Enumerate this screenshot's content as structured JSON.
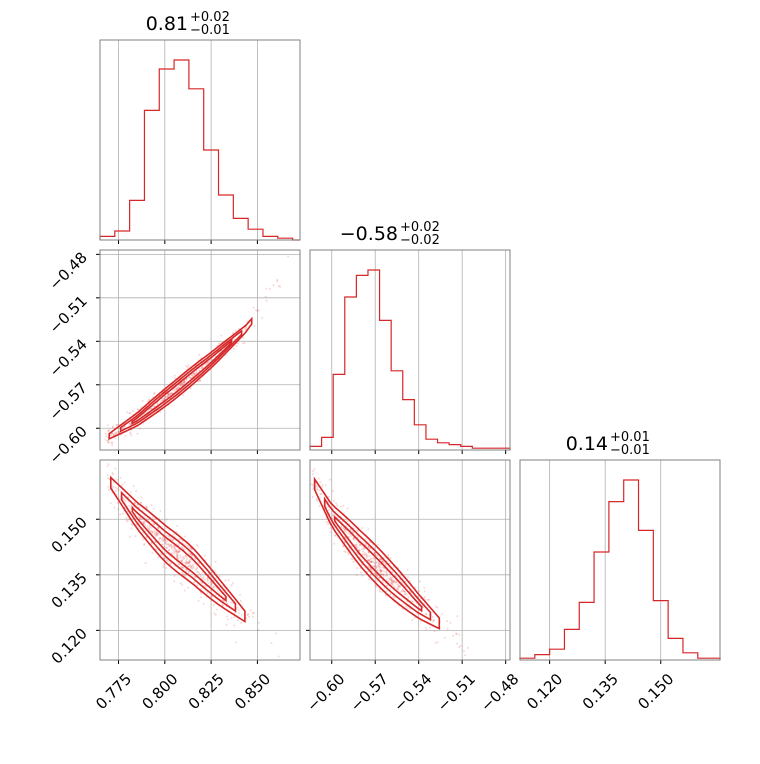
{
  "chart_data": {
    "type": "corner",
    "color": "#d62728",
    "grid": true,
    "parameters": [
      {
        "median": "0.81",
        "plus": "+0.02",
        "minus": "−0.01",
        "range": [
          0.765,
          0.873
        ],
        "ticks": [
          0.775,
          0.8,
          0.825,
          0.85
        ],
        "tick_labels": [
          "0.775",
          "0.800",
          "0.825",
          "0.850"
        ],
        "hist": {
          "bins": [
            0.765,
            0.773,
            0.781,
            0.789,
            0.797,
            0.805,
            0.813,
            0.821,
            0.829,
            0.837,
            0.845,
            0.853,
            0.861,
            0.869,
            0.873
          ],
          "counts": [
            2,
            5,
            22,
            72,
            95,
            100,
            84,
            50,
            25,
            12,
            6,
            2,
            1,
            0
          ]
        }
      },
      {
        "median": "−0.58",
        "plus": "+0.02",
        "minus": "−0.02",
        "range": [
          -0.615,
          -0.477
        ],
        "ticks": [
          -0.6,
          -0.57,
          -0.54,
          -0.51,
          -0.48
        ],
        "tick_labels": [
          "−0.60",
          "−0.57",
          "−0.54",
          "−0.51",
          "−0.48"
        ],
        "hist": {
          "bins": [
            -0.615,
            -0.607,
            -0.599,
            -0.591,
            -0.583,
            -0.575,
            -0.567,
            -0.559,
            -0.551,
            -0.543,
            -0.535,
            -0.527,
            -0.519,
            -0.511,
            -0.503,
            -0.495,
            -0.477
          ],
          "counts": [
            2,
            7,
            42,
            85,
            97,
            100,
            72,
            44,
            28,
            14,
            6,
            4,
            3,
            2,
            1,
            1
          ]
        }
      },
      {
        "median": "0.14",
        "plus": "+0.01",
        "minus": "−0.01",
        "range": [
          0.112,
          0.166
        ],
        "ticks": [
          0.12,
          0.135,
          0.15
        ],
        "tick_labels": [
          "0.120",
          "0.135",
          "0.150"
        ],
        "hist": {
          "bins": [
            0.112,
            0.116,
            0.12,
            0.124,
            0.128,
            0.132,
            0.136,
            0.14,
            0.144,
            0.148,
            0.152,
            0.156,
            0.16,
            0.166
          ],
          "counts": [
            1,
            3,
            6,
            17,
            32,
            60,
            88,
            100,
            72,
            33,
            12,
            4,
            1
          ]
        }
      }
    ],
    "pairs": [
      {
        "x_param": 0,
        "y_param": 1,
        "ridge": [
          [
            0.768,
            -0.607
          ],
          [
            0.785,
            -0.594
          ],
          [
            0.805,
            -0.574
          ],
          [
            0.825,
            -0.553
          ],
          [
            0.845,
            -0.53
          ],
          [
            0.87,
            -0.48
          ]
        ],
        "spread_y": 0.0035
      },
      {
        "x_param": 0,
        "y_param": 2,
        "ridge": [
          [
            0.769,
            0.161
          ],
          [
            0.785,
            0.151
          ],
          [
            0.8,
            0.1435
          ],
          [
            0.815,
            0.1375
          ],
          [
            0.83,
            0.13
          ],
          [
            0.845,
            0.123
          ],
          [
            0.865,
            0.116
          ]
        ],
        "spread_y": 0.0028
      },
      {
        "x_param": 1,
        "y_param": 2,
        "ridge": [
          [
            -0.614,
            0.161
          ],
          [
            -0.6,
            0.151
          ],
          [
            -0.58,
            0.142
          ],
          [
            -0.56,
            0.134
          ],
          [
            -0.54,
            0.1265
          ],
          [
            -0.52,
            0.12
          ],
          [
            -0.5,
            0.115
          ]
        ],
        "spread_y": 0.0028
      }
    ]
  }
}
